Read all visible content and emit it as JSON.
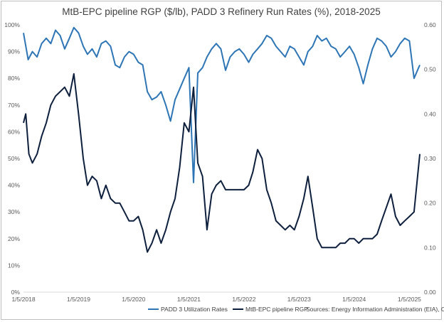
{
  "chart_data": {
    "type": "line",
    "title": "MtB-EPC pipeline RGP ($/lb), PADD 3 Refinery Run Rates (%), 2018-2025",
    "x_ticks": [
      "1/5/2018",
      "1/5/2019",
      "1/5/2020",
      "1/5/2021",
      "1/5/2022",
      "1/5/2023",
      "1/5/2024",
      "1/5/2025"
    ],
    "x_range": [
      "2018-01-05",
      "2025-03-15"
    ],
    "y_left": {
      "ticks": [
        "0%",
        "10%",
        "20%",
        "30%",
        "40%",
        "50%",
        "60%",
        "70%",
        "80%",
        "90%",
        "100%"
      ],
      "range": [
        0,
        100
      ]
    },
    "y_right": {
      "ticks": [
        "0.00",
        "0.10",
        "0.20",
        "0.30",
        "0.40",
        "0.50",
        "0.60"
      ],
      "range": [
        0,
        0.6
      ]
    },
    "grid": false,
    "legend_position": "bottom",
    "sources": "Sources: Energy Information Administration (EIA), OPIS",
    "series": [
      {
        "name": "PADD 3 Utilization Rates",
        "axis": "left",
        "color": "#2e75b6",
        "points": [
          [
            "2018-01-05",
            97
          ],
          [
            "2018-02-05",
            87
          ],
          [
            "2018-03-05",
            90
          ],
          [
            "2018-04-05",
            88
          ],
          [
            "2018-05-05",
            93
          ],
          [
            "2018-06-05",
            95
          ],
          [
            "2018-07-05",
            93
          ],
          [
            "2018-08-05",
            98
          ],
          [
            "2018-09-05",
            96
          ],
          [
            "2018-10-05",
            91
          ],
          [
            "2018-11-05",
            95
          ],
          [
            "2018-12-05",
            99
          ],
          [
            "2019-01-05",
            97
          ],
          [
            "2019-02-05",
            92
          ],
          [
            "2019-03-05",
            89
          ],
          [
            "2019-04-05",
            91
          ],
          [
            "2019-05-05",
            88
          ],
          [
            "2019-06-05",
            93
          ],
          [
            "2019-07-05",
            94
          ],
          [
            "2019-08-05",
            92
          ],
          [
            "2019-09-05",
            85
          ],
          [
            "2019-10-05",
            84
          ],
          [
            "2019-11-05",
            88
          ],
          [
            "2019-12-05",
            90
          ],
          [
            "2020-01-05",
            89
          ],
          [
            "2020-02-05",
            86
          ],
          [
            "2020-03-05",
            85
          ],
          [
            "2020-04-05",
            75
          ],
          [
            "2020-05-05",
            72
          ],
          [
            "2020-06-05",
            73
          ],
          [
            "2020-07-05",
            75
          ],
          [
            "2020-08-05",
            70
          ],
          [
            "2020-09-05",
            64
          ],
          [
            "2020-10-05",
            72
          ],
          [
            "2020-11-05",
            76
          ],
          [
            "2020-12-05",
            80
          ],
          [
            "2021-01-05",
            84
          ],
          [
            "2021-02-05",
            41
          ],
          [
            "2021-03-05",
            82
          ],
          [
            "2021-04-05",
            84
          ],
          [
            "2021-05-05",
            88
          ],
          [
            "2021-06-05",
            91
          ],
          [
            "2021-07-05",
            93
          ],
          [
            "2021-08-05",
            91
          ],
          [
            "2021-09-05",
            83
          ],
          [
            "2021-10-05",
            88
          ],
          [
            "2021-11-05",
            90
          ],
          [
            "2021-12-05",
            91
          ],
          [
            "2022-01-05",
            89
          ],
          [
            "2022-02-05",
            86
          ],
          [
            "2022-03-05",
            89
          ],
          [
            "2022-04-05",
            91
          ],
          [
            "2022-05-05",
            93
          ],
          [
            "2022-06-05",
            96
          ],
          [
            "2022-07-05",
            95
          ],
          [
            "2022-08-05",
            92
          ],
          [
            "2022-09-05",
            90
          ],
          [
            "2022-10-05",
            88
          ],
          [
            "2022-11-05",
            92
          ],
          [
            "2022-12-05",
            91
          ],
          [
            "2023-01-05",
            88
          ],
          [
            "2023-02-05",
            85
          ],
          [
            "2023-03-05",
            90
          ],
          [
            "2023-04-05",
            92
          ],
          [
            "2023-05-05",
            96
          ],
          [
            "2023-06-05",
            94
          ],
          [
            "2023-07-05",
            95
          ],
          [
            "2023-08-05",
            92
          ],
          [
            "2023-09-05",
            91
          ],
          [
            "2023-10-05",
            88
          ],
          [
            "2023-11-05",
            90
          ],
          [
            "2023-12-05",
            92
          ],
          [
            "2024-01-05",
            89
          ],
          [
            "2024-02-05",
            84
          ],
          [
            "2024-03-05",
            78
          ],
          [
            "2024-04-05",
            85
          ],
          [
            "2024-05-05",
            91
          ],
          [
            "2024-06-05",
            95
          ],
          [
            "2024-07-05",
            94
          ],
          [
            "2024-08-05",
            92
          ],
          [
            "2024-09-05",
            88
          ],
          [
            "2024-10-05",
            90
          ],
          [
            "2024-11-05",
            93
          ],
          [
            "2024-12-05",
            95
          ],
          [
            "2025-01-05",
            94
          ],
          [
            "2025-02-05",
            80
          ],
          [
            "2025-03-15",
            85
          ]
        ]
      },
      {
        "name": "MtB-EPC pipeline RGP",
        "axis": "right",
        "color": "#0d1f3c",
        "points": [
          [
            "2018-01-05",
            0.38
          ],
          [
            "2018-01-20",
            0.4
          ],
          [
            "2018-02-10",
            0.31
          ],
          [
            "2018-03-05",
            0.29
          ],
          [
            "2018-04-05",
            0.31
          ],
          [
            "2018-05-05",
            0.35
          ],
          [
            "2018-06-05",
            0.38
          ],
          [
            "2018-07-05",
            0.42
          ],
          [
            "2018-08-05",
            0.44
          ],
          [
            "2018-09-05",
            0.45
          ],
          [
            "2018-10-05",
            0.46
          ],
          [
            "2018-11-05",
            0.44
          ],
          [
            "2018-12-05",
            0.49
          ],
          [
            "2019-01-05",
            0.4
          ],
          [
            "2019-02-05",
            0.3
          ],
          [
            "2019-03-05",
            0.24
          ],
          [
            "2019-04-05",
            0.26
          ],
          [
            "2019-05-05",
            0.25
          ],
          [
            "2019-06-05",
            0.21
          ],
          [
            "2019-07-05",
            0.24
          ],
          [
            "2019-08-05",
            0.21
          ],
          [
            "2019-09-05",
            0.2
          ],
          [
            "2019-10-05",
            0.2
          ],
          [
            "2019-11-05",
            0.18
          ],
          [
            "2019-12-05",
            0.16
          ],
          [
            "2020-01-05",
            0.16
          ],
          [
            "2020-02-05",
            0.17
          ],
          [
            "2020-03-05",
            0.14
          ],
          [
            "2020-04-05",
            0.09
          ],
          [
            "2020-05-05",
            0.11
          ],
          [
            "2020-06-05",
            0.14
          ],
          [
            "2020-07-05",
            0.11
          ],
          [
            "2020-08-05",
            0.14
          ],
          [
            "2020-09-05",
            0.18
          ],
          [
            "2020-10-05",
            0.21
          ],
          [
            "2020-11-05",
            0.28
          ],
          [
            "2020-12-05",
            0.38
          ],
          [
            "2021-01-05",
            0.36
          ],
          [
            "2021-02-05",
            0.46
          ],
          [
            "2021-03-05",
            0.29
          ],
          [
            "2021-04-05",
            0.26
          ],
          [
            "2021-05-05",
            0.14
          ],
          [
            "2021-06-05",
            0.22
          ],
          [
            "2021-07-05",
            0.24
          ],
          [
            "2021-08-05",
            0.25
          ],
          [
            "2021-09-05",
            0.23
          ],
          [
            "2021-10-05",
            0.23
          ],
          [
            "2021-11-05",
            0.23
          ],
          [
            "2021-12-05",
            0.23
          ],
          [
            "2022-01-05",
            0.23
          ],
          [
            "2022-02-05",
            0.24
          ],
          [
            "2022-03-05",
            0.27
          ],
          [
            "2022-04-05",
            0.32
          ],
          [
            "2022-05-05",
            0.3
          ],
          [
            "2022-06-05",
            0.23
          ],
          [
            "2022-07-05",
            0.2
          ],
          [
            "2022-08-05",
            0.16
          ],
          [
            "2022-09-05",
            0.15
          ],
          [
            "2022-10-05",
            0.14
          ],
          [
            "2022-11-05",
            0.15
          ],
          [
            "2022-12-05",
            0.14
          ],
          [
            "2023-01-05",
            0.17
          ],
          [
            "2023-02-05",
            0.21
          ],
          [
            "2023-03-05",
            0.26
          ],
          [
            "2023-04-05",
            0.19
          ],
          [
            "2023-05-05",
            0.12
          ],
          [
            "2023-06-05",
            0.1
          ],
          [
            "2023-07-05",
            0.1
          ],
          [
            "2023-08-05",
            0.1
          ],
          [
            "2023-09-05",
            0.1
          ],
          [
            "2023-10-05",
            0.11
          ],
          [
            "2023-11-05",
            0.11
          ],
          [
            "2023-12-05",
            0.12
          ],
          [
            "2024-01-05",
            0.12
          ],
          [
            "2024-02-05",
            0.11
          ],
          [
            "2024-03-05",
            0.12
          ],
          [
            "2024-04-05",
            0.12
          ],
          [
            "2024-05-05",
            0.12
          ],
          [
            "2024-06-05",
            0.13
          ],
          [
            "2024-07-05",
            0.16
          ],
          [
            "2024-08-05",
            0.19
          ],
          [
            "2024-09-05",
            0.22
          ],
          [
            "2024-10-05",
            0.17
          ],
          [
            "2024-11-05",
            0.15
          ],
          [
            "2024-12-05",
            0.16
          ],
          [
            "2025-01-05",
            0.17
          ],
          [
            "2025-02-05",
            0.18
          ],
          [
            "2025-03-15",
            0.31
          ]
        ]
      }
    ]
  }
}
